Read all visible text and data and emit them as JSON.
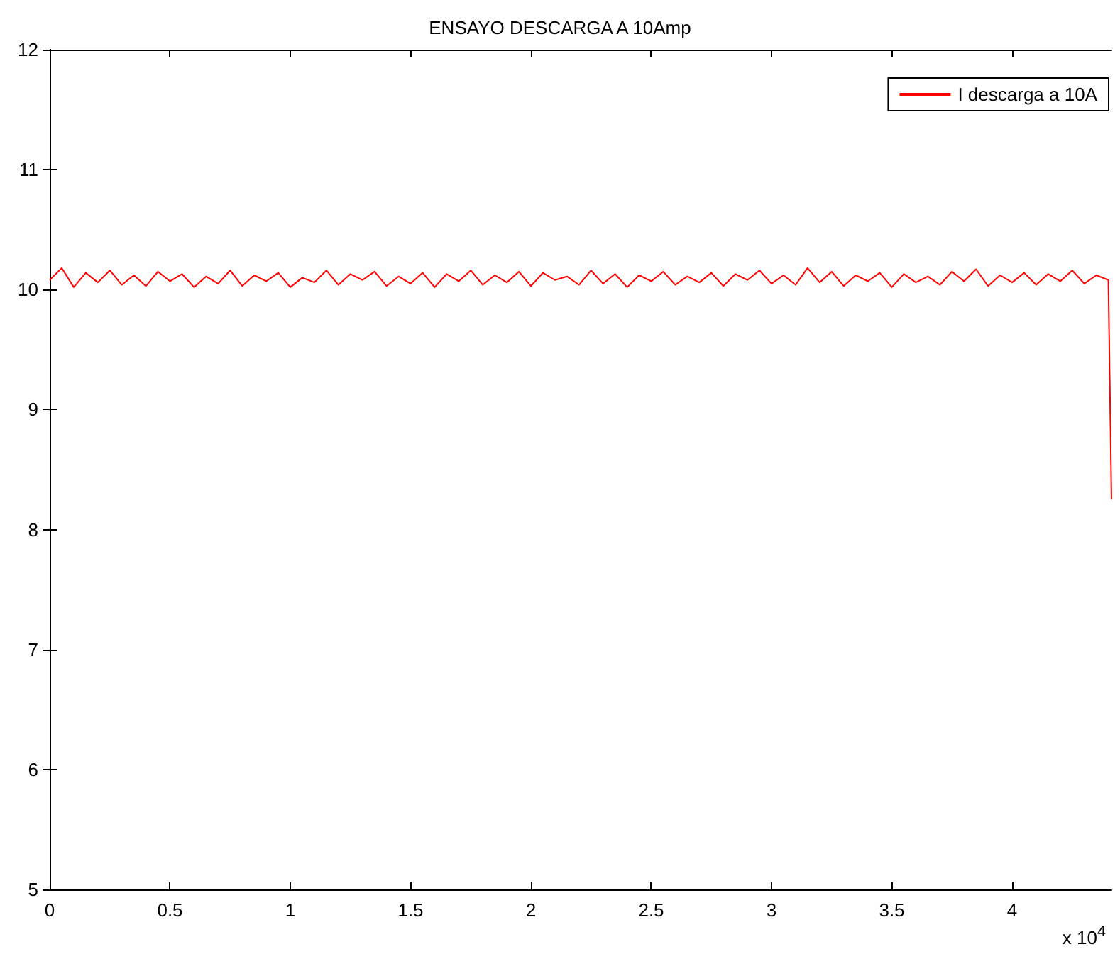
{
  "chart_data": {
    "type": "line",
    "title": "ENSAYO DESCARGA A 10Amp",
    "x": [
      0,
      0.05,
      0.1,
      0.15,
      0.2,
      0.25,
      0.3,
      0.35,
      0.4,
      0.45,
      0.5,
      0.55,
      0.6,
      0.65,
      0.7,
      0.75,
      0.8,
      0.85,
      0.9,
      0.95,
      1,
      1.05,
      1.1,
      1.15,
      1.2,
      1.25,
      1.3,
      1.35,
      1.4,
      1.45,
      1.5,
      1.55,
      1.6,
      1.65,
      1.7,
      1.75,
      1.8,
      1.85,
      1.9,
      1.95,
      2,
      2.05,
      2.1,
      2.15,
      2.2,
      2.25,
      2.3,
      2.35,
      2.4,
      2.45,
      2.5,
      2.55,
      2.6,
      2.65,
      2.7,
      2.75,
      2.8,
      2.85,
      2.9,
      2.95,
      3,
      3.05,
      3.1,
      3.15,
      3.2,
      3.25,
      3.3,
      3.35,
      3.4,
      3.45,
      3.5,
      3.55,
      3.6,
      3.65,
      3.7,
      3.75,
      3.8,
      3.85,
      3.9,
      3.95,
      4,
      4.05,
      4.1,
      4.15,
      4.2,
      4.25,
      4.3,
      4.35,
      4.4,
      4.413
    ],
    "series": [
      {
        "name": "I descarga a 10A",
        "color": "#ff0000",
        "values": [
          10.08,
          10.18,
          10.02,
          10.14,
          10.06,
          10.16,
          10.04,
          10.12,
          10.03,
          10.15,
          10.07,
          10.13,
          10.02,
          10.11,
          10.05,
          10.16,
          10.03,
          10.12,
          10.07,
          10.14,
          10.02,
          10.1,
          10.06,
          10.16,
          10.04,
          10.13,
          10.08,
          10.15,
          10.03,
          10.11,
          10.05,
          10.14,
          10.02,
          10.13,
          10.07,
          10.16,
          10.04,
          10.12,
          10.06,
          10.15,
          10.03,
          10.14,
          10.08,
          10.11,
          10.04,
          10.16,
          10.05,
          10.13,
          10.02,
          10.12,
          10.07,
          10.15,
          10.04,
          10.11,
          10.06,
          10.14,
          10.03,
          10.13,
          10.08,
          10.16,
          10.05,
          10.12,
          10.04,
          10.18,
          10.06,
          10.15,
          10.03,
          10.12,
          10.07,
          10.14,
          10.02,
          10.13,
          10.06,
          10.11,
          10.04,
          10.15,
          10.07,
          10.17,
          10.03,
          10.12,
          10.06,
          10.14,
          10.04,
          10.13,
          10.07,
          10.16,
          10.05,
          10.12,
          10.08,
          8.25
        ]
      }
    ],
    "xlim": [
      0,
      4.413
    ],
    "xticks": [
      0,
      0.5,
      1,
      1.5,
      2,
      2.5,
      3,
      3.5,
      4
    ],
    "ylim": [
      5,
      12
    ],
    "yticks": [
      5,
      6,
      7,
      8,
      9,
      10,
      11,
      12
    ],
    "annotations": [
      "x 10$^{4}$"
    ],
    "legend": "top right",
    "grid": false,
    "marker": "none",
    "line_style": "solid"
  }
}
